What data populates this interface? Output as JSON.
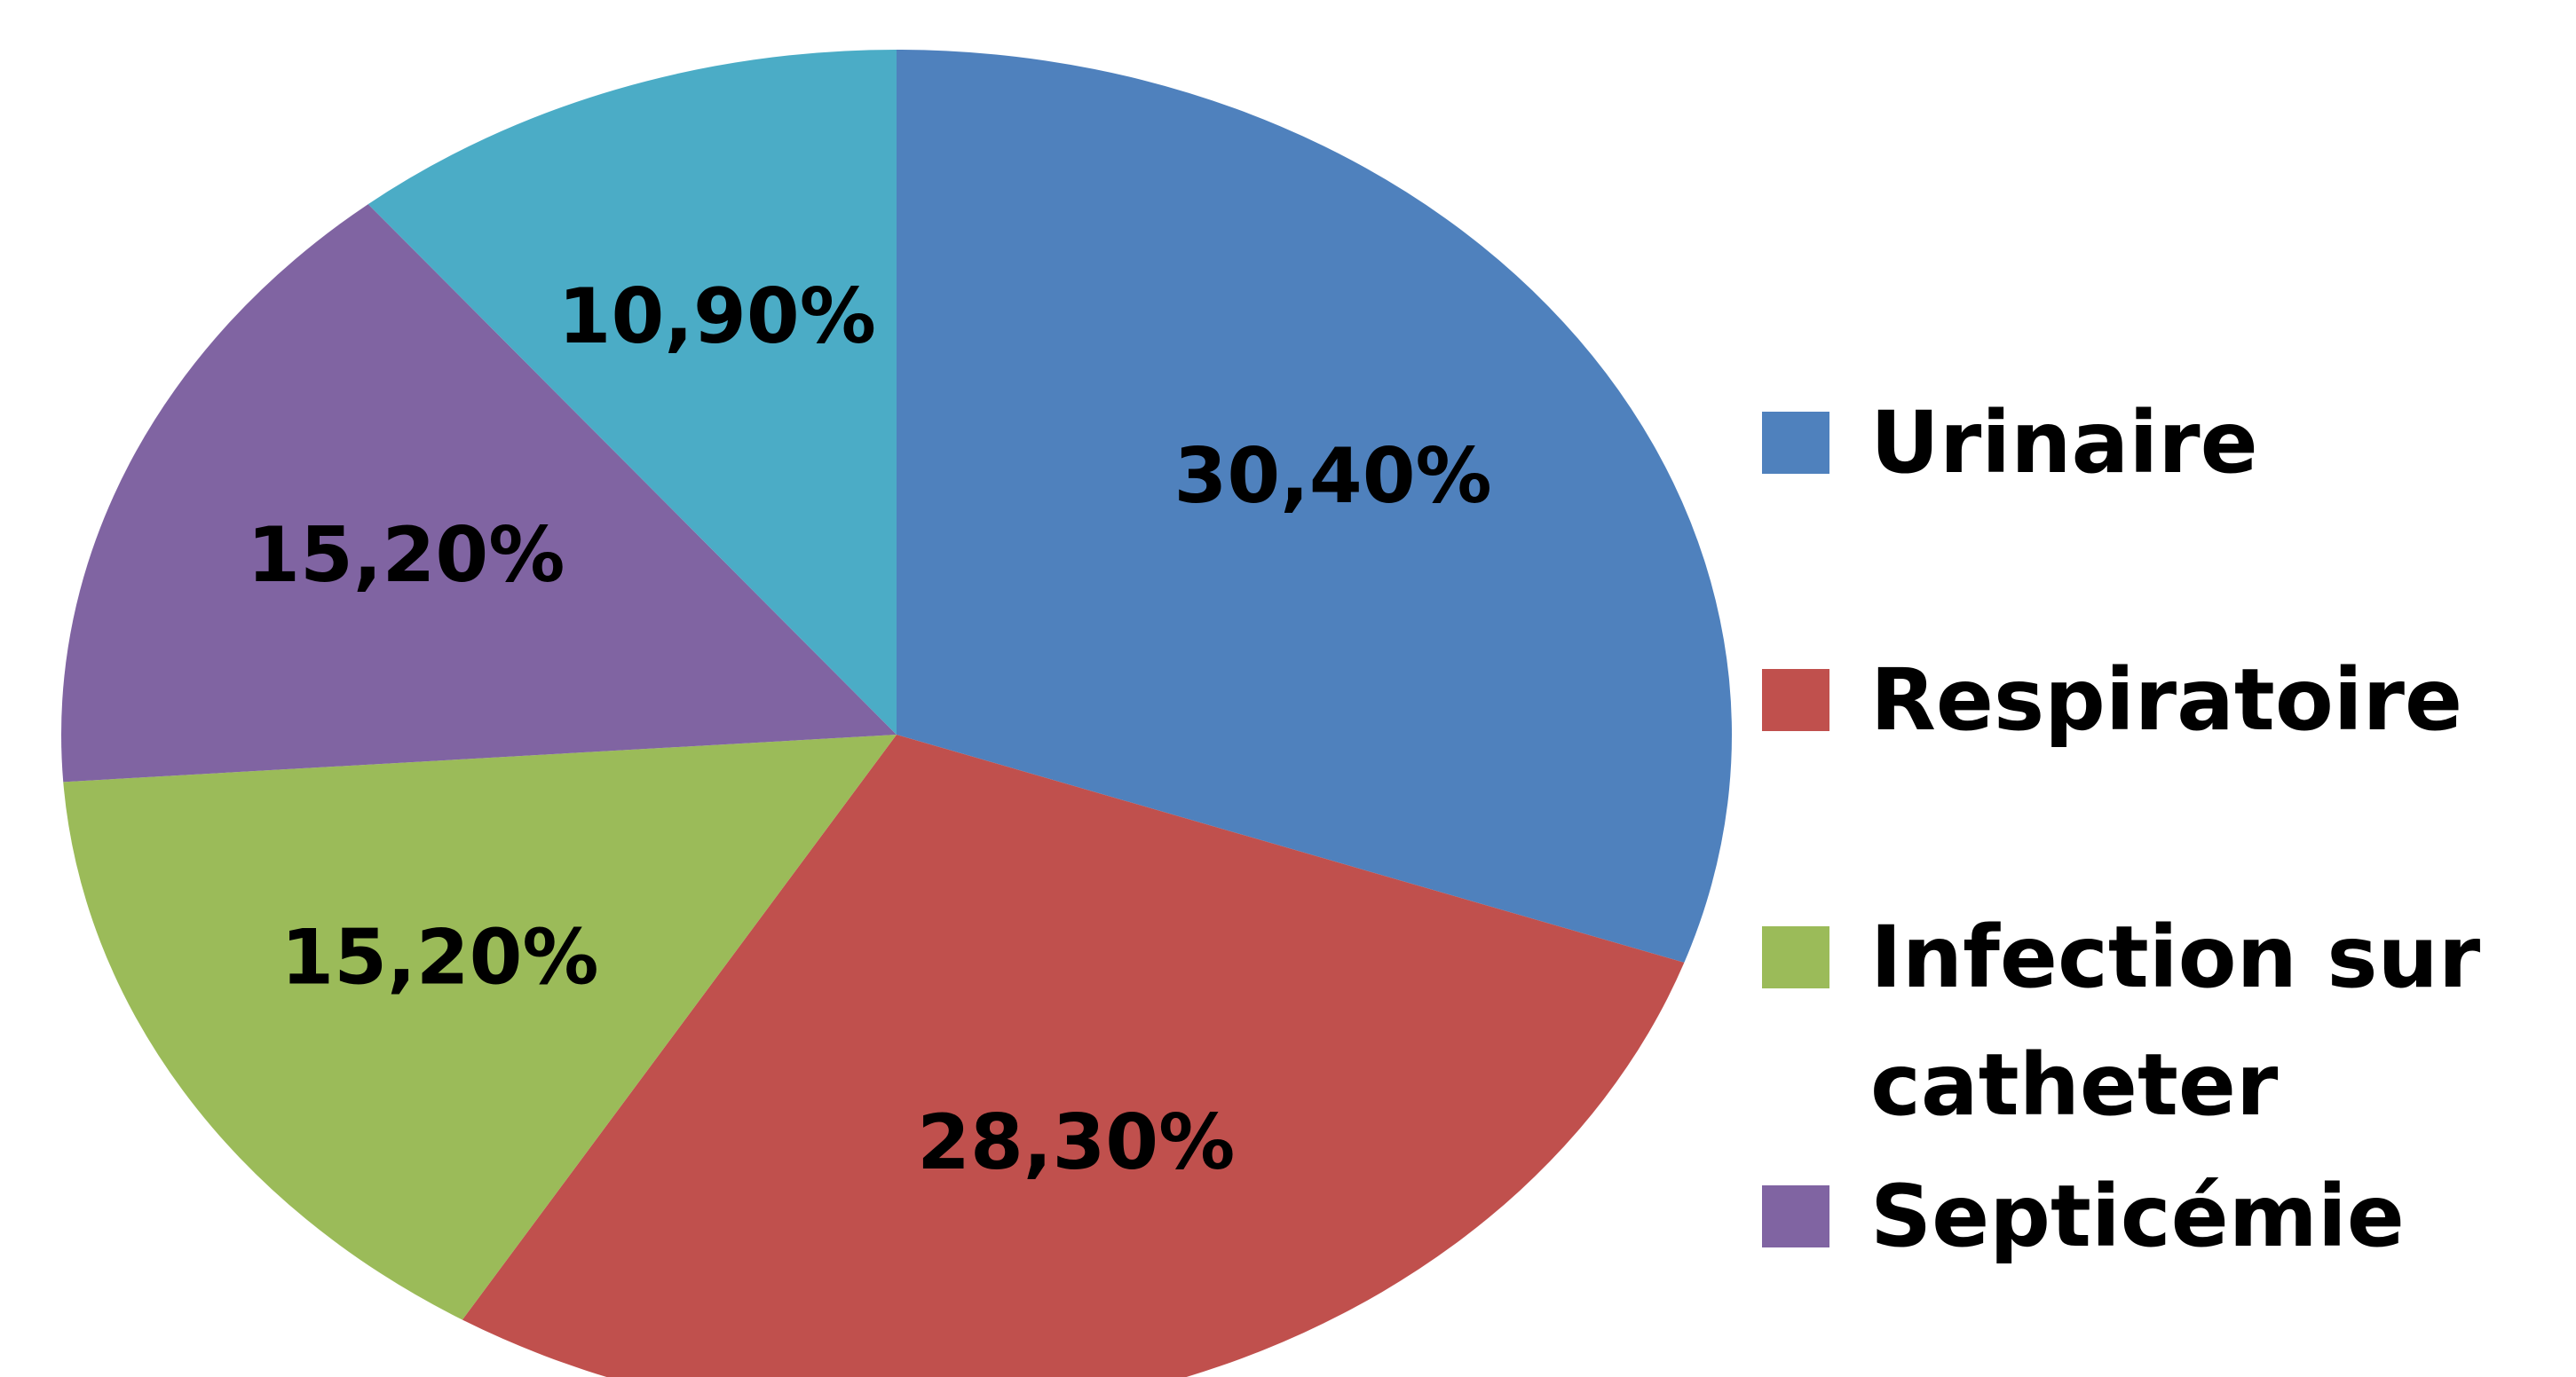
{
  "chart_data": {
    "type": "pie",
    "categories": [
      "Urinaire",
      "Respiratoire",
      "Infection sur catheter",
      "Septicémie",
      null
    ],
    "values": [
      30.4,
      28.3,
      15.2,
      15.2,
      10.9
    ],
    "value_labels": [
      "30,40%",
      "28,30%",
      "15,20%",
      "15,20%",
      "10,90%"
    ],
    "colors": [
      "#4f81bd",
      "#c0504d",
      "#9bbb59",
      "#8064a2",
      "#4bacc6"
    ],
    "legend": "right"
  }
}
